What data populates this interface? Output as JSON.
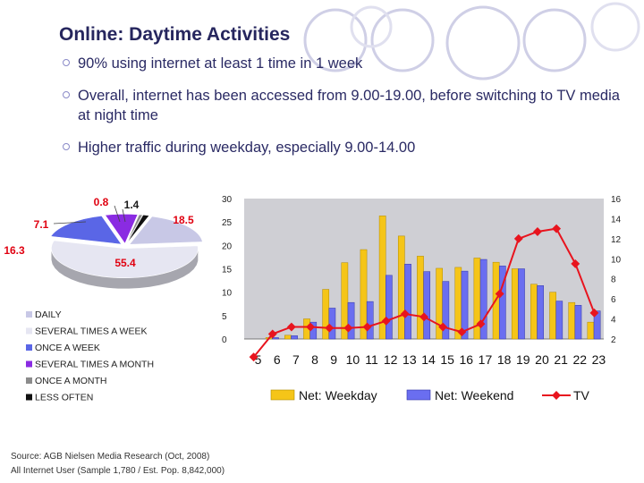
{
  "slide": {
    "title": "Online: Daytime Activities",
    "bullets": [
      "90% using internet at least 1 time in 1 week",
      "Overall, internet has been accessed from 9.00-19.00, before switching to TV media at night time",
      "Higher traffic during weekday, especially 9.00-14.00"
    ],
    "source_line1": "Source: AGB Nielsen Media Research (Oct, 2008)",
    "source_line2": "All Internet User (Sample 1,780 / Est. Pop. 8,842,000)"
  },
  "colors": {
    "weekday": "#f5c518",
    "weekend": "#6a6ef0",
    "tv": "#e8141e",
    "plot_bg": "#cfcfd4",
    "slice_daily": "#c8c8e6",
    "slice_several_week": "#e6e6f2",
    "slice_once_week": "#5a66e6",
    "slice_several_month": "#8a2be2",
    "slice_once_month": "#8c8c8c",
    "slice_less_often": "#111111"
  },
  "chart_data": [
    {
      "type": "pie",
      "subtype": "3d-exploded",
      "labels": [
        "DAILY",
        "SEVERAL TIMES A WEEK",
        "ONCE A WEEK",
        "SEVERAL TIMES A MONTH",
        "ONCE A MONTH",
        "LESS OFTEN"
      ],
      "values": [
        18.5,
        55.4,
        16.3,
        7.1,
        0.8,
        1.4
      ],
      "data_labels": [
        "18.5",
        "55.4",
        "16.3",
        "7.1",
        "0.8",
        "1.4"
      ],
      "legend_position": "bottom-left"
    },
    {
      "type": "bar-line-combo",
      "categories": [
        "5",
        "6",
        "7",
        "8",
        "9",
        "10",
        "11",
        "12",
        "13",
        "14",
        "15",
        "16",
        "17",
        "18",
        "19",
        "20",
        "21",
        "22",
        "23"
      ],
      "series": [
        {
          "name": "Net: Weekday",
          "type": "bar",
          "axis": "left",
          "values": [
            0,
            0.3,
            0.8,
            4.3,
            10.6,
            16.3,
            19.1,
            26.3,
            22.0,
            17.7,
            15.1,
            15.3,
            17.3,
            16.4,
            15.0,
            11.7,
            10.0,
            7.8,
            3.6
          ]
        },
        {
          "name": "Net: Weekend",
          "type": "bar",
          "axis": "left",
          "values": [
            0,
            0.3,
            0.7,
            3.6,
            6.6,
            7.8,
            8.0,
            13.6,
            16.0,
            14.4,
            12.3,
            14.5,
            17.0,
            15.6,
            15.0,
            11.4,
            8.1,
            7.2,
            6.0
          ]
        },
        {
          "name": "TV",
          "type": "line",
          "axis": "right",
          "values": [
            0.2,
            2.5,
            3.2,
            3.2,
            3.1,
            3.1,
            3.2,
            3.8,
            4.5,
            4.2,
            3.2,
            2.7,
            3.5,
            6.5,
            12.0,
            12.7,
            13.0,
            9.5,
            4.6
          ]
        }
      ],
      "y_left": {
        "min": 0,
        "max": 30,
        "ticks": [
          "0",
          "5",
          "10",
          "15",
          "20",
          "25",
          "30"
        ]
      },
      "y_right": {
        "min": 2,
        "max": 16,
        "ticks": [
          "2",
          "4",
          "6",
          "8",
          "10",
          "12",
          "14",
          "16"
        ]
      },
      "legend": [
        "Net: Weekday",
        "Net: Weekend",
        "TV"
      ],
      "legend_position": "bottom",
      "grid": false
    }
  ]
}
